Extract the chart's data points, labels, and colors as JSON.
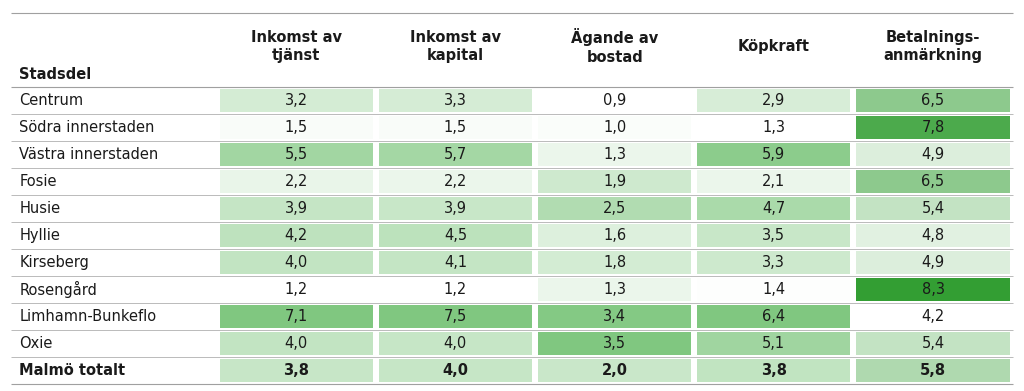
{
  "col_headers": [
    "Inkomst av\ntjänst",
    "Inkomst av\nkapital",
    "Ägande av\nbostad",
    "Köpkraft",
    "Betalnings-\nanmärkning"
  ],
  "row_labels": [
    "Centrum",
    "Södra innerstaden",
    "Västra innerstaden",
    "Fosie",
    "Husie",
    "Hyllie",
    "Kirseberg",
    "Rosengård",
    "Limhamn-Bunkeflo",
    "Oxie",
    "Malmö totalt"
  ],
  "data": [
    [
      3.2,
      3.3,
      0.9,
      2.9,
      6.5
    ],
    [
      1.5,
      1.5,
      1.0,
      1.3,
      7.8
    ],
    [
      5.5,
      5.7,
      1.3,
      5.9,
      4.9
    ],
    [
      2.2,
      2.2,
      1.9,
      2.1,
      6.5
    ],
    [
      3.9,
      3.9,
      2.5,
      4.7,
      5.4
    ],
    [
      4.2,
      4.5,
      1.6,
      3.5,
      4.8
    ],
    [
      4.0,
      4.1,
      1.8,
      3.3,
      4.9
    ],
    [
      1.2,
      1.2,
      1.3,
      1.4,
      8.3
    ],
    [
      7.1,
      7.5,
      3.4,
      6.4,
      4.2
    ],
    [
      4.0,
      4.0,
      3.5,
      5.1,
      5.4
    ],
    [
      3.8,
      4.0,
      2.0,
      3.8,
      5.8
    ]
  ],
  "header_label": "Stadsdel",
  "bg_color": "#ffffff",
  "border_color": "#a0a0a0",
  "text_color": "#1a1a1a",
  "font_size": 10.5,
  "header_font_size": 10.5
}
